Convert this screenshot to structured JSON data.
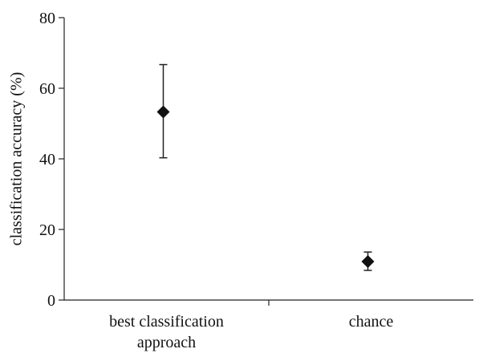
{
  "chart_data": {
    "type": "scatter",
    "categories": [
      "best classification approach",
      "chance"
    ],
    "category_lines": [
      [
        "best classification",
        "approach"
      ],
      [
        "chance"
      ]
    ],
    "values": [
      53.3,
      10.9
    ],
    "error_low": [
      40.3,
      8.4
    ],
    "error_high": [
      66.7,
      13.6
    ],
    "ylabel": "classification accuracy (%)",
    "xlabel": "",
    "title": "",
    "ylim": [
      0,
      80
    ],
    "yticks": [
      0,
      20,
      40,
      60,
      80
    ],
    "grid": false,
    "marker": "diamond",
    "colors": {
      "marker": "#111111",
      "axis": "#222222"
    }
  }
}
